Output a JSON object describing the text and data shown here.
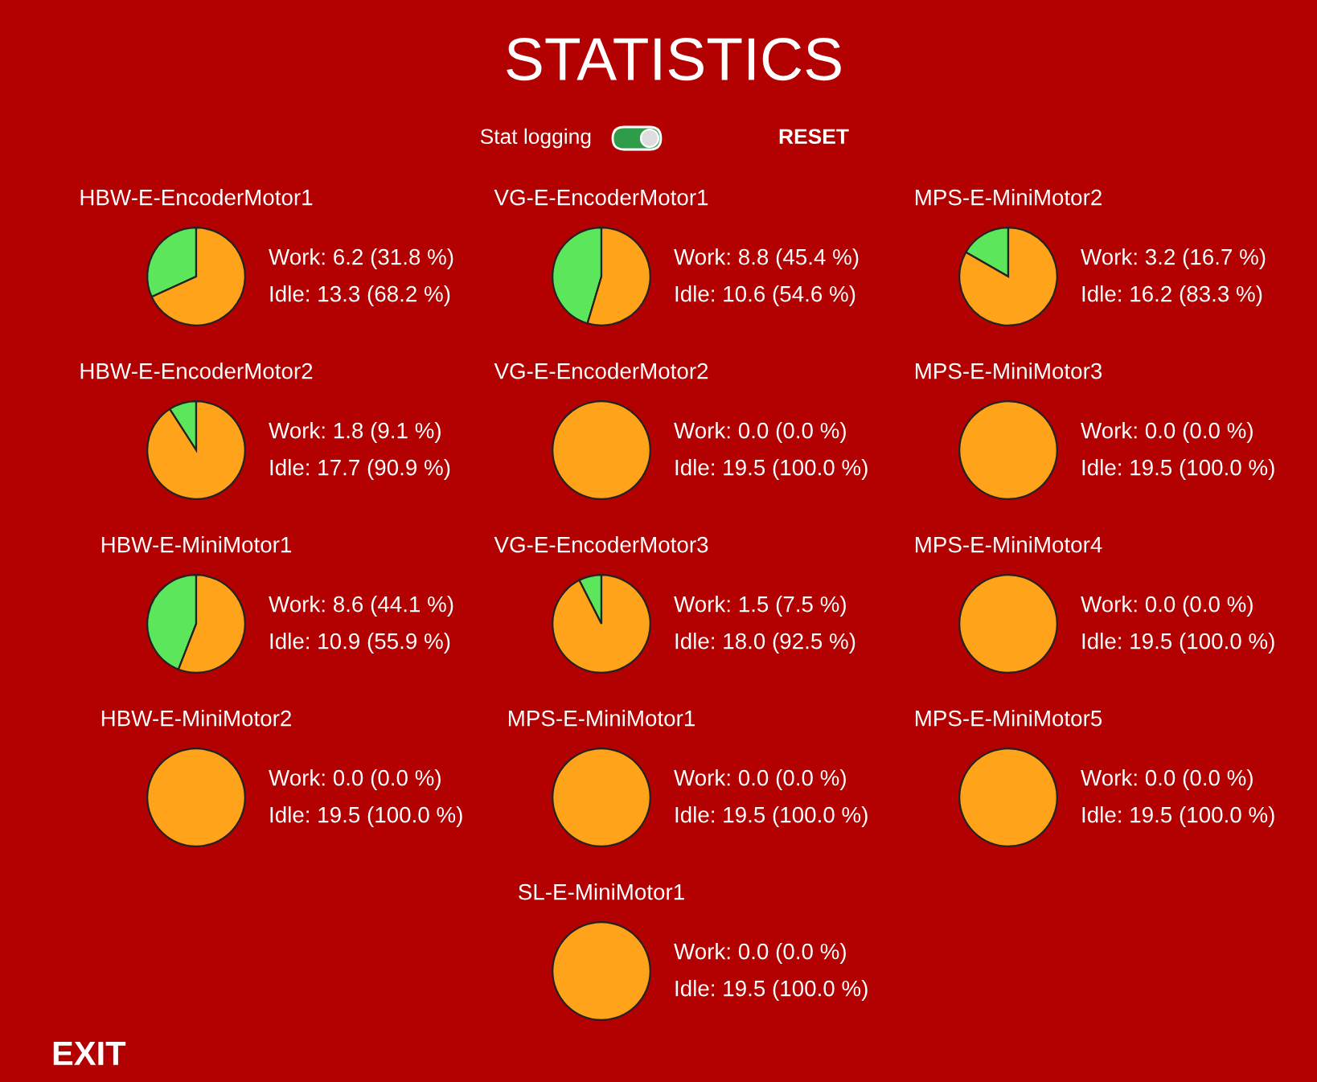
{
  "chart_data": [
    {
      "type": "other",
      "title": "STATISTICS",
      "annotations": [
        "Stat logging",
        "RESET",
        "EXIT"
      ]
    },
    {
      "type": "pie",
      "title": "HBW-E-EncoderMotor1",
      "categories": [
        null,
        null
      ],
      "values": [
        31.8,
        68.2
      ],
      "annotations": [
        "Work: 6.2 (31.8 %)",
        "Idle: 13.3 (68.2 %)"
      ],
      "colors": [
        "#5ce65c",
        "#ffa31a"
      ]
    },
    {
      "type": "pie",
      "title": "VG-E-EncoderMotor1",
      "categories": [
        null,
        null
      ],
      "values": [
        45.4,
        54.6
      ],
      "annotations": [
        "Work: 8.8 (45.4 %)",
        "Idle: 10.6 (54.6 %)"
      ],
      "colors": [
        "#5ce65c",
        "#ffa31a"
      ]
    },
    {
      "type": "pie",
      "title": "MPS-E-MiniMotor2",
      "categories": [
        null,
        null
      ],
      "values": [
        16.7,
        83.3
      ],
      "annotations": [
        "Work: 3.2 (16.7 %)",
        "Idle: 16.2 (83.3 %)"
      ],
      "colors": [
        "#5ce65c",
        "#ffa31a"
      ]
    },
    {
      "type": "pie",
      "title": "HBW-E-EncoderMotor2",
      "categories": [
        null,
        null
      ],
      "values": [
        9.1,
        90.9
      ],
      "annotations": [
        "Work: 1.8 (9.1 %)",
        "Idle: 17.7 (90.9 %)"
      ],
      "colors": [
        "#5ce65c",
        "#ffa31a"
      ]
    },
    {
      "type": "pie",
      "title": "VG-E-EncoderMotor2",
      "categories": [
        null,
        null
      ],
      "values": [
        0.0,
        100.0
      ],
      "annotations": [
        "Work: 0.0 (0.0 %)",
        "Idle: 19.5 (100.0 %)"
      ],
      "colors": [
        "#5ce65c",
        "#ffa31a"
      ]
    },
    {
      "type": "pie",
      "title": "MPS-E-MiniMotor3",
      "categories": [
        null,
        null
      ],
      "values": [
        0.0,
        100.0
      ],
      "annotations": [
        "Work: 0.0 (0.0 %)",
        "Idle: 19.5 (100.0 %)"
      ],
      "colors": [
        "#5ce65c",
        "#ffa31a"
      ]
    },
    {
      "type": "pie",
      "title": "HBW-E-MiniMotor1",
      "categories": [
        null,
        null
      ],
      "values": [
        44.1,
        55.9
      ],
      "annotations": [
        "Work: 8.6 (44.1 %)",
        "Idle: 10.9 (55.9 %)"
      ],
      "colors": [
        "#5ce65c",
        "#ffa31a"
      ]
    },
    {
      "type": "pie",
      "title": "VG-E-EncoderMotor3",
      "categories": [
        null,
        null
      ],
      "values": [
        7.5,
        92.5
      ],
      "annotations": [
        "Work: 1.5 (7.5 %)",
        "Idle: 18.0 (92.5 %)"
      ],
      "colors": [
        "#5ce65c",
        "#ffa31a"
      ]
    },
    {
      "type": "pie",
      "title": "MPS-E-MiniMotor4",
      "categories": [
        null,
        null
      ],
      "values": [
        0.0,
        100.0
      ],
      "annotations": [
        "Work: 0.0 (0.0 %)",
        "Idle: 19.5 (100.0 %)"
      ],
      "colors": [
        "#5ce65c",
        "#ffa31a"
      ]
    },
    {
      "type": "pie",
      "title": "HBW-E-MiniMotor2",
      "categories": [
        null,
        null
      ],
      "values": [
        0.0,
        100.0
      ],
      "annotations": [
        "Work: 0.0 (0.0 %)",
        "Idle: 19.5 (100.0 %)"
      ],
      "colors": [
        "#5ce65c",
        "#ffa31a"
      ]
    },
    {
      "type": "pie",
      "title": "MPS-E-MiniMotor1",
      "categories": [
        null,
        null
      ],
      "values": [
        0.0,
        100.0
      ],
      "annotations": [
        "Work: 0.0 (0.0 %)",
        "Idle: 19.5 (100.0 %)"
      ],
      "colors": [
        "#5ce65c",
        "#ffa31a"
      ]
    },
    {
      "type": "pie",
      "title": "MPS-E-MiniMotor5",
      "categories": [
        null,
        null
      ],
      "values": [
        0.0,
        100.0
      ],
      "annotations": [
        "Work: 0.0 (0.0 %)",
        "Idle: 19.5 (100.0 %)"
      ],
      "colors": [
        "#5ce65c",
        "#ffa31a"
      ]
    },
    {
      "type": "pie",
      "title": "SL-E-MiniMotor1",
      "categories": [
        null,
        null
      ],
      "values": [
        0.0,
        100.0
      ],
      "annotations": [
        "Work: 0.0 (0.0 %)",
        "Idle: 19.5 (100.0 %)"
      ],
      "colors": [
        "#5ce65c",
        "#ffa31a"
      ]
    }
  ]
}
